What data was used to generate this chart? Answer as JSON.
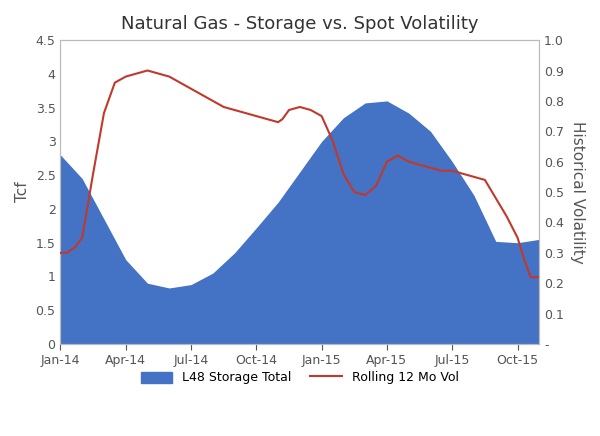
{
  "title": "Natural Gas - Storage vs. Spot Volatility",
  "ylabel_left": "Tcf",
  "ylabel_right": "Historical Volatility",
  "ylim_left": [
    0,
    4.5
  ],
  "ylim_right": [
    0,
    1.0
  ],
  "yticks_left": [
    0,
    0.5,
    1.0,
    1.5,
    2.0,
    2.5,
    3.0,
    3.5,
    4.0,
    4.5
  ],
  "yticks_right": [
    0,
    0.1,
    0.2,
    0.3,
    0.4,
    0.5,
    0.6,
    0.7,
    0.8,
    0.9,
    1.0
  ],
  "xtick_labels": [
    "Jan-14",
    "Apr-14",
    "Jul-14",
    "Oct-14",
    "Jan-15",
    "Apr-15",
    "Jul-15",
    "Oct-15"
  ],
  "xtick_positions": [
    0,
    3,
    6,
    9,
    12,
    15,
    18,
    21
  ],
  "xlim": [
    0,
    22
  ],
  "storage_color": "#4472C4",
  "vol_color": "#C0392B",
  "legend_storage": "L48 Storage Total",
  "legend_vol": "Rolling 12 Mo Vol",
  "storage_x": [
    0,
    1,
    2,
    3,
    4,
    5,
    6,
    7,
    8,
    9,
    10,
    11,
    12,
    13,
    14,
    15,
    16,
    17,
    18,
    19,
    20,
    21,
    22
  ],
  "storage_y": [
    2.8,
    2.45,
    1.85,
    1.25,
    0.9,
    0.83,
    0.88,
    1.05,
    1.35,
    1.72,
    2.1,
    2.55,
    3.0,
    3.35,
    3.57,
    3.6,
    3.42,
    3.15,
    2.7,
    2.2,
    1.52,
    1.5,
    1.55
  ],
  "vol_x": [
    0,
    0.3,
    0.7,
    1.0,
    1.5,
    2.0,
    2.5,
    3.0,
    3.5,
    4.0,
    4.5,
    5.0,
    5.5,
    6.0,
    6.5,
    7.0,
    7.5,
    8.0,
    8.5,
    9.0,
    9.5,
    10.0,
    10.2,
    10.5,
    11.0,
    11.5,
    12.0,
    12.5,
    13.0,
    13.5,
    14.0,
    14.5,
    15.0,
    15.5,
    16.0,
    16.5,
    17.0,
    17.5,
    18.0,
    18.5,
    19.0,
    19.5,
    20.0,
    20.5,
    21.0,
    21.3,
    21.6,
    22.0
  ],
  "vol_y": [
    0.3,
    0.3,
    0.32,
    0.35,
    0.56,
    0.76,
    0.86,
    0.88,
    0.89,
    0.9,
    0.89,
    0.88,
    0.86,
    0.84,
    0.82,
    0.8,
    0.78,
    0.77,
    0.76,
    0.75,
    0.74,
    0.73,
    0.74,
    0.77,
    0.78,
    0.77,
    0.75,
    0.67,
    0.56,
    0.5,
    0.49,
    0.52,
    0.6,
    0.62,
    0.6,
    0.59,
    0.58,
    0.57,
    0.57,
    0.56,
    0.55,
    0.54,
    0.48,
    0.42,
    0.35,
    0.28,
    0.22,
    0.22
  ],
  "background_color": "#ffffff",
  "spine_color": "#BBBBBB",
  "tick_color": "#555555",
  "title_fontsize": 13,
  "label_fontsize": 11,
  "tick_fontsize": 9
}
